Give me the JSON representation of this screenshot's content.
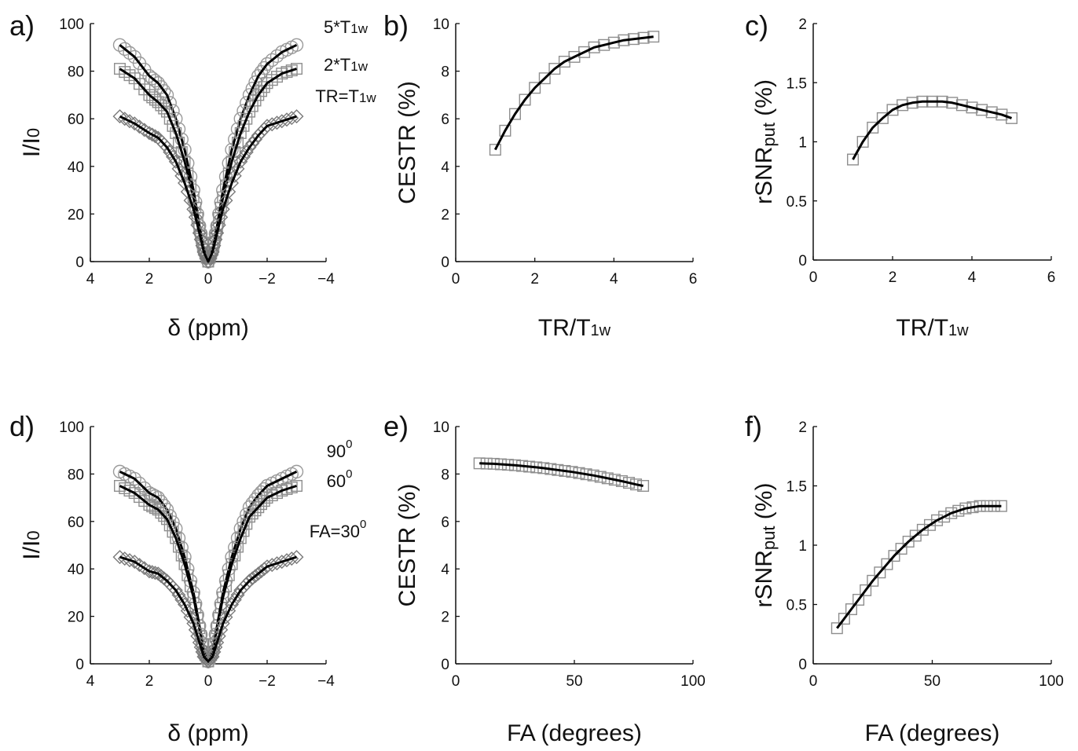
{
  "chart_data": [
    {
      "panel": "a)",
      "type": "line",
      "xlabel": "δ (ppm)",
      "ylabel": "I/I0",
      "xlim": [
        4,
        -4
      ],
      "ylim": [
        0,
        100
      ],
      "xticks": [
        "4",
        "2",
        "0",
        "−2",
        "−4"
      ],
      "yticks": [
        "0",
        "20",
        "40",
        "60",
        "80",
        "100"
      ],
      "annotations": [
        "5*T1w",
        "2*T1w",
        "TR=T1w"
      ],
      "series": [
        {
          "marker": "circle",
          "plateau": 91,
          "x": [
            3,
            2.5,
            2,
            1.7,
            1.4,
            1.1,
            0.8,
            0.5,
            0.3,
            0.15,
            0,
            -0.15,
            -0.3,
            -0.5,
            -0.8,
            -1.1,
            -1.4,
            -1.7,
            -2,
            -2.5,
            -3
          ],
          "y": [
            91,
            86,
            78,
            75,
            70,
            60,
            47,
            30,
            15,
            5,
            0,
            5,
            15,
            30,
            47,
            60,
            70,
            78,
            83,
            88,
            91
          ]
        },
        {
          "marker": "square",
          "plateau": 81,
          "x": [
            3,
            2.5,
            2,
            1.7,
            1.4,
            1.1,
            0.8,
            0.5,
            0.3,
            0.15,
            0,
            -0.15,
            -0.3,
            -0.5,
            -0.8,
            -1.1,
            -1.4,
            -1.7,
            -2,
            -2.5,
            -3
          ],
          "y": [
            81,
            77,
            70,
            67,
            63,
            54,
            42,
            27,
            14,
            5,
            0,
            5,
            14,
            27,
            42,
            54,
            63,
            70,
            75,
            79,
            81
          ]
        },
        {
          "marker": "diamond",
          "plateau": 61,
          "x": [
            3,
            2.5,
            2,
            1.7,
            1.4,
            1.1,
            0.8,
            0.5,
            0.3,
            0.15,
            0,
            -0.15,
            -0.3,
            -0.5,
            -0.8,
            -1.1,
            -1.4,
            -1.7,
            -2,
            -2.5,
            -3
          ],
          "y": [
            61,
            58,
            54,
            52,
            48,
            42,
            33,
            22,
            12,
            4,
            0,
            4,
            12,
            22,
            33,
            42,
            48,
            53,
            57,
            59,
            61
          ]
        }
      ]
    },
    {
      "panel": "b)",
      "type": "line",
      "xlabel": "TR/T1w",
      "ylabel": "CESTR (%)",
      "xlim": [
        0,
        6
      ],
      "ylim": [
        0,
        10
      ],
      "xticks": [
        "0",
        "2",
        "4",
        "6"
      ],
      "yticks": [
        "0",
        "2",
        "4",
        "6",
        "8",
        "10"
      ],
      "series": [
        {
          "marker": "square",
          "x": [
            1,
            1.25,
            1.5,
            1.75,
            2,
            2.25,
            2.5,
            2.75,
            3,
            3.25,
            3.5,
            3.75,
            4,
            4.25,
            4.5,
            4.75,
            5
          ],
          "y": [
            4.7,
            5.5,
            6.2,
            6.8,
            7.3,
            7.7,
            8.1,
            8.4,
            8.6,
            8.8,
            9.0,
            9.1,
            9.2,
            9.3,
            9.35,
            9.4,
            9.45
          ]
        }
      ]
    },
    {
      "panel": "c)",
      "type": "line",
      "xlabel": "TR/T1w",
      "ylabel": "rSNRput (%)",
      "xlim": [
        0,
        6
      ],
      "ylim": [
        0,
        2
      ],
      "xticks": [
        "0",
        "2",
        "4",
        "6"
      ],
      "yticks": [
        "0",
        "0.5",
        "1",
        "1.5",
        "2"
      ],
      "series": [
        {
          "marker": "square",
          "x": [
            1,
            1.25,
            1.5,
            1.75,
            2,
            2.25,
            2.5,
            2.75,
            3,
            3.25,
            3.5,
            3.75,
            4,
            4.25,
            4.5,
            4.75,
            5
          ],
          "y": [
            0.85,
            1.0,
            1.12,
            1.2,
            1.27,
            1.31,
            1.33,
            1.34,
            1.34,
            1.34,
            1.33,
            1.31,
            1.29,
            1.27,
            1.25,
            1.23,
            1.2
          ]
        }
      ]
    },
    {
      "panel": "d)",
      "type": "line",
      "xlabel": "δ (ppm)",
      "ylabel": "I/I0",
      "xlim": [
        4,
        -4
      ],
      "ylim": [
        0,
        100
      ],
      "xticks": [
        "4",
        "2",
        "0",
        "−2",
        "−4"
      ],
      "yticks": [
        "0",
        "20",
        "40",
        "60",
        "80",
        "100"
      ],
      "annotations": [
        "90",
        "60",
        "FA=30"
      ],
      "annotation_superscript": "0",
      "series": [
        {
          "marker": "circle",
          "plateau": 81,
          "x": [
            3,
            2.5,
            2,
            1.7,
            1.4,
            1.1,
            0.8,
            0.5,
            0.3,
            0.15,
            0,
            -0.15,
            -0.3,
            -0.5,
            -0.8,
            -1.1,
            -1.4,
            -1.7,
            -2,
            -2.5,
            -3
          ],
          "y": [
            81,
            78,
            72,
            70,
            65,
            57,
            45,
            30,
            16,
            5,
            1,
            5,
            16,
            30,
            45,
            57,
            66,
            71,
            75,
            78,
            81
          ]
        },
        {
          "marker": "square",
          "plateau": 75,
          "x": [
            3,
            2.5,
            2,
            1.7,
            1.4,
            1.1,
            0.8,
            0.5,
            0.3,
            0.15,
            0,
            -0.15,
            -0.3,
            -0.5,
            -0.8,
            -1.1,
            -1.4,
            -1.7,
            -2,
            -2.5,
            -3
          ],
          "y": [
            75,
            72,
            67,
            65,
            61,
            53,
            42,
            28,
            15,
            5,
            1,
            5,
            15,
            28,
            42,
            53,
            62,
            66,
            70,
            73,
            75
          ]
        },
        {
          "marker": "diamond",
          "plateau": 45,
          "x": [
            3,
            2.5,
            2,
            1.7,
            1.4,
            1.1,
            0.8,
            0.5,
            0.3,
            0.15,
            0,
            -0.15,
            -0.3,
            -0.5,
            -0.8,
            -1.1,
            -1.4,
            -1.7,
            -2,
            -2.5,
            -3
          ],
          "y": [
            45,
            43,
            39,
            38,
            35,
            31,
            25,
            17,
            9,
            3,
            1,
            3,
            9,
            17,
            25,
            31,
            35,
            38,
            41,
            43,
            45
          ]
        }
      ]
    },
    {
      "panel": "e)",
      "type": "line",
      "xlabel": "FA (degrees)",
      "ylabel": "CESTR (%)",
      "xlim": [
        0,
        100
      ],
      "ylim": [
        0,
        10
      ],
      "xticks": [
        "0",
        "50",
        "100"
      ],
      "yticks": [
        "0",
        "2",
        "4",
        "6",
        "8",
        "10"
      ],
      "series": [
        {
          "marker": "square",
          "x": [
            10,
            13,
            16,
            19,
            22,
            25,
            28,
            31,
            34,
            37,
            40,
            43,
            46,
            49,
            52,
            55,
            58,
            61,
            64,
            67,
            70,
            73,
            76,
            79
          ],
          "y": [
            8.45,
            8.44,
            8.43,
            8.41,
            8.39,
            8.37,
            8.34,
            8.31,
            8.28,
            8.25,
            8.21,
            8.17,
            8.13,
            8.09,
            8.04,
            7.99,
            7.94,
            7.88,
            7.82,
            7.76,
            7.7,
            7.63,
            7.56,
            7.5
          ]
        }
      ]
    },
    {
      "panel": "f)",
      "type": "line",
      "xlabel": "FA (degrees)",
      "ylabel": "rSNRput (%)",
      "xlim": [
        0,
        100
      ],
      "ylim": [
        0,
        2
      ],
      "xticks": [
        "0",
        "50",
        "100"
      ],
      "yticks": [
        "0",
        "0.5",
        "1",
        "1.5",
        "2"
      ],
      "series": [
        {
          "marker": "square",
          "x": [
            10,
            13,
            16,
            19,
            22,
            25,
            28,
            31,
            34,
            37,
            40,
            43,
            46,
            49,
            52,
            55,
            58,
            61,
            64,
            67,
            70,
            73,
            76,
            79
          ],
          "y": [
            0.3,
            0.38,
            0.46,
            0.54,
            0.62,
            0.7,
            0.77,
            0.84,
            0.91,
            0.97,
            1.03,
            1.08,
            1.13,
            1.17,
            1.21,
            1.24,
            1.27,
            1.29,
            1.31,
            1.32,
            1.33,
            1.33,
            1.33,
            1.33
          ]
        }
      ]
    }
  ]
}
